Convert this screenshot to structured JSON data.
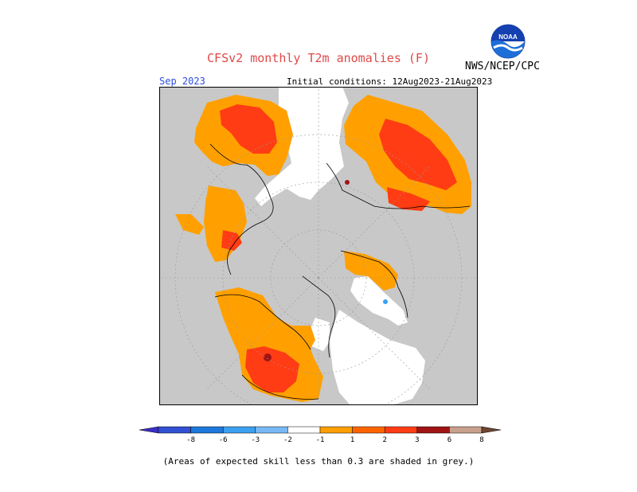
{
  "header": {
    "title": "CFSv2 monthly T2m anomalies (F)",
    "agency": "NWS/NCEP/CPC",
    "logo_text": "NOAA",
    "month": "Sep 2023",
    "initial_conditions": "Initial conditions: 12Aug2023-21Aug2023"
  },
  "colors": {
    "no_skill_grey": "#c8c8c8",
    "neutral_white": "#ffffff",
    "anom_1_2": "#ffa000",
    "anom_2_3": "#ff3c14",
    "anom_3_6": "#d71e1e",
    "anom_6_8": "#a01414",
    "title": "#e04848",
    "month": "#2a4ee0"
  },
  "colorbar": {
    "labels": [
      "-8",
      "-6",
      "-3",
      "-2",
      "-1",
      "1",
      "2",
      "3",
      "6",
      "8"
    ],
    "colors": [
      "#3a2dc8",
      "#3250d2",
      "#1e78dc",
      "#3ca0f0",
      "#78b9f5",
      "#ffffff",
      "#ffa000",
      "#ff6400",
      "#ff3c14",
      "#a01414",
      "#c8a08c",
      "#6e4632"
    ]
  },
  "footnote": "(Areas of expected skill less than 0.3 are shaded in grey.)"
}
